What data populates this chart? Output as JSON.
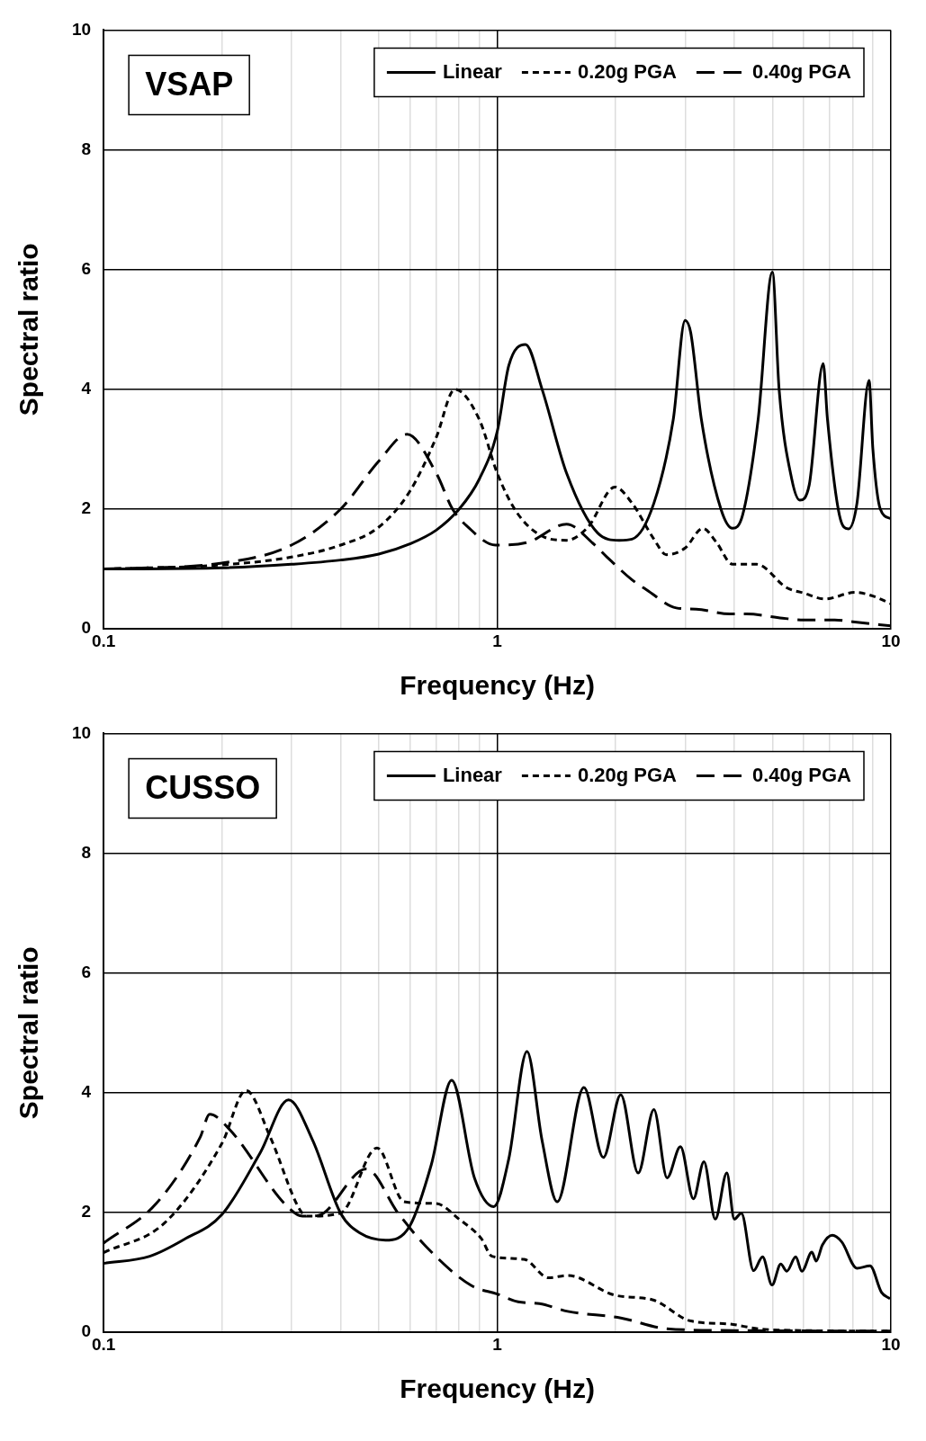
{
  "chart_data": [
    {
      "type": "line",
      "xlabel": "Frequency (Hz)",
      "ylabel": "Spectral ratio",
      "annotations": [
        "VSAP"
      ],
      "log": "x",
      "grid": true,
      "legend": "top right",
      "marker": "none",
      "xlim": [
        0.1,
        10
      ],
      "xticks": [
        0.1,
        {
          "value": 0.2,
          "label": null
        },
        {
          "value": 0.3,
          "label": null
        },
        {
          "value": 0.4,
          "label": null
        },
        {
          "value": 0.5,
          "label": null
        },
        {
          "value": 0.6,
          "label": null
        },
        {
          "value": 0.7,
          "label": null
        },
        {
          "value": 0.8,
          "label": null
        },
        {
          "value": 0.9,
          "label": null
        },
        1,
        {
          "value": 2,
          "label": null
        },
        {
          "value": 3,
          "label": null
        },
        {
          "value": 4,
          "label": null
        },
        {
          "value": 5,
          "label": null
        },
        {
          "value": 6,
          "label": null
        },
        {
          "value": 7,
          "label": null
        },
        {
          "value": 8,
          "label": null
        },
        {
          "value": 9,
          "label": null
        },
        10
      ],
      "ylim": [
        0,
        10
      ],
      "yticks": [
        0,
        2,
        4,
        6,
        8,
        10
      ],
      "series": [
        {
          "name": "Linear",
          "color": "#000000",
          "line_style": "solid",
          "x": [
            0.1,
            0.2,
            0.3,
            0.4,
            0.5,
            0.6,
            0.7,
            0.8,
            0.9,
            1.0,
            1.07,
            1.18,
            1.3,
            1.5,
            1.8,
            2.04,
            2.2,
            2.5,
            2.8,
            3.0,
            3.1,
            3.3,
            3.7,
            3.96,
            4.2,
            4.6,
            5.0,
            5.2,
            5.6,
            5.87,
            6.2,
            6.73,
            6.9,
            7.4,
            7.8,
            8.2,
            8.8,
            9.0,
            9.4,
            10
          ],
          "values": [
            1.0,
            1.02,
            1.08,
            1.15,
            1.25,
            1.42,
            1.65,
            2.0,
            2.5,
            3.3,
            4.4,
            4.75,
            4.0,
            2.6,
            1.6,
            1.48,
            1.5,
            2.1,
            3.5,
            5.15,
            4.95,
            3.5,
            2.0,
            1.68,
            1.9,
            3.5,
            5.96,
            4.0,
            2.5,
            2.15,
            2.4,
            4.43,
            3.5,
            1.9,
            1.67,
            2.1,
            4.15,
            3.0,
            2.0,
            1.84
          ]
        },
        {
          "name": "0.20g PGA",
          "color": "#000000",
          "line_style": "dashed",
          "x": [
            0.1,
            0.2,
            0.3,
            0.4,
            0.5,
            0.6,
            0.7,
            0.78,
            0.9,
            1.0,
            1.12,
            1.3,
            1.5,
            1.7,
            1.99,
            2.2,
            2.5,
            2.69,
            3.0,
            3.33,
            3.6,
            3.96,
            4.56,
            5.43,
            6.0,
            6.8,
            8.1,
            9.0,
            10
          ],
          "values": [
            1.0,
            1.07,
            1.2,
            1.4,
            1.7,
            2.3,
            3.2,
            4.0,
            3.5,
            2.6,
            1.95,
            1.55,
            1.48,
            1.7,
            2.37,
            2.1,
            1.5,
            1.24,
            1.35,
            1.68,
            1.45,
            1.08,
            1.08,
            0.69,
            0.6,
            0.5,
            0.61,
            0.55,
            0.42
          ]
        },
        {
          "name": "0.40g PGA",
          "color": "#000000",
          "line_style": "dashed",
          "x": [
            0.1,
            0.2,
            0.3,
            0.4,
            0.5,
            0.59,
            0.7,
            0.77,
            0.84,
            0.99,
            1.2,
            1.5,
            1.75,
            1.9,
            2.2,
            2.4,
            2.85,
            3.2,
            3.9,
            4.3,
            5.3,
            6.0,
            7.2,
            8.0,
            10
          ],
          "values": [
            1.0,
            1.1,
            1.4,
            2.0,
            2.8,
            3.25,
            2.6,
            2.0,
            1.71,
            1.4,
            1.45,
            1.75,
            1.43,
            1.2,
            0.82,
            0.65,
            0.35,
            0.33,
            0.25,
            0.25,
            0.18,
            0.15,
            0.15,
            0.12,
            0.05
          ]
        }
      ]
    },
    {
      "type": "line",
      "xlabel": "Frequency (Hz)",
      "ylabel": "Spectral ratio",
      "annotations": [
        "CUSSO"
      ],
      "log": "x",
      "grid": true,
      "legend": "top right",
      "marker": "none",
      "xlim": [
        0.1,
        10
      ],
      "xticks": [
        0.1,
        {
          "value": 0.2,
          "label": null
        },
        {
          "value": 0.3,
          "label": null
        },
        {
          "value": 0.4,
          "label": null
        },
        {
          "value": 0.5,
          "label": null
        },
        {
          "value": 0.6,
          "label": null
        },
        {
          "value": 0.7,
          "label": null
        },
        {
          "value": 0.8,
          "label": null
        },
        {
          "value": 0.9,
          "label": null
        },
        1,
        {
          "value": 2,
          "label": null
        },
        {
          "value": 3,
          "label": null
        },
        {
          "value": 4,
          "label": null
        },
        {
          "value": 5,
          "label": null
        },
        {
          "value": 6,
          "label": null
        },
        {
          "value": 7,
          "label": null
        },
        {
          "value": 8,
          "label": null
        },
        {
          "value": 9,
          "label": null
        },
        10
      ],
      "ylim": [
        0,
        10
      ],
      "yticks": [
        0,
        2,
        4,
        6,
        8,
        10
      ],
      "series": [
        {
          "name": "Linear",
          "color": "#000000",
          "line_style": "solid",
          "x": [
            0.1,
            0.131,
            0.16,
            0.2,
            0.25,
            0.295,
            0.34,
            0.4,
            0.45,
            0.52,
            0.6,
            0.68,
            0.766,
            0.875,
            0.98,
            1.07,
            1.19,
            1.3,
            1.42,
            1.66,
            1.86,
            2.06,
            2.28,
            2.5,
            2.7,
            2.92,
            3.15,
            3.35,
            3.58,
            3.83,
            4.0,
            4.17,
            4.48,
            4.72,
            4.99,
            5.25,
            5.44,
            5.73,
            5.94,
            6.3,
            6.46,
            6.7,
            7.1,
            7.5,
            8.2,
            8.85,
            9.46,
            9.95
          ],
          "values": [
            1.15,
            1.27,
            1.55,
            1.97,
            3.0,
            3.88,
            3.2,
            1.99,
            1.65,
            1.54,
            1.78,
            2.8,
            4.21,
            2.58,
            2.1,
            2.9,
            4.69,
            3.2,
            2.18,
            4.09,
            2.92,
            3.97,
            2.66,
            3.72,
            2.58,
            3.1,
            2.23,
            2.85,
            1.89,
            2.66,
            1.89,
            1.99,
            1.03,
            1.26,
            0.79,
            1.14,
            1.02,
            1.26,
            1.02,
            1.34,
            1.19,
            1.46,
            1.62,
            1.51,
            1.07,
            1.11,
            0.67,
            0.56
          ]
        },
        {
          "name": "0.20g PGA",
          "color": "#000000",
          "line_style": "dashed",
          "x": [
            0.1,
            0.143,
            0.2,
            0.23,
            0.265,
            0.315,
            0.33,
            0.4,
            0.495,
            0.58,
            0.7,
            0.8,
            0.91,
            0.97,
            1.17,
            1.35,
            1.51,
            1.99,
            2.49,
            3.1,
            3.87,
            4.6,
            6.0,
            10
          ],
          "values": [
            1.33,
            1.83,
            3.16,
            4.04,
            3.26,
            2.05,
            1.94,
            1.99,
            3.08,
            2.18,
            2.15,
            1.89,
            1.57,
            1.27,
            1.22,
            0.91,
            0.95,
            0.62,
            0.54,
            0.19,
            0.14,
            0.06,
            0.03,
            0.02
          ]
        },
        {
          "name": "0.40g PGA",
          "color": "#000000",
          "line_style": "dashed",
          "x": [
            0.1,
            0.136,
            0.176,
            0.186,
            0.21,
            0.29,
            0.32,
            0.35,
            0.465,
            0.56,
            0.66,
            0.86,
            1.0,
            1.13,
            1.28,
            1.51,
            2.06,
            2.7,
            4.0,
            10
          ],
          "values": [
            1.49,
            2.15,
            3.26,
            3.64,
            3.37,
            2.13,
            1.94,
            1.95,
            2.73,
            1.99,
            1.43,
            0.78,
            0.64,
            0.51,
            0.48,
            0.35,
            0.24,
            0.06,
            0.03,
            0.02
          ]
        }
      ]
    }
  ]
}
